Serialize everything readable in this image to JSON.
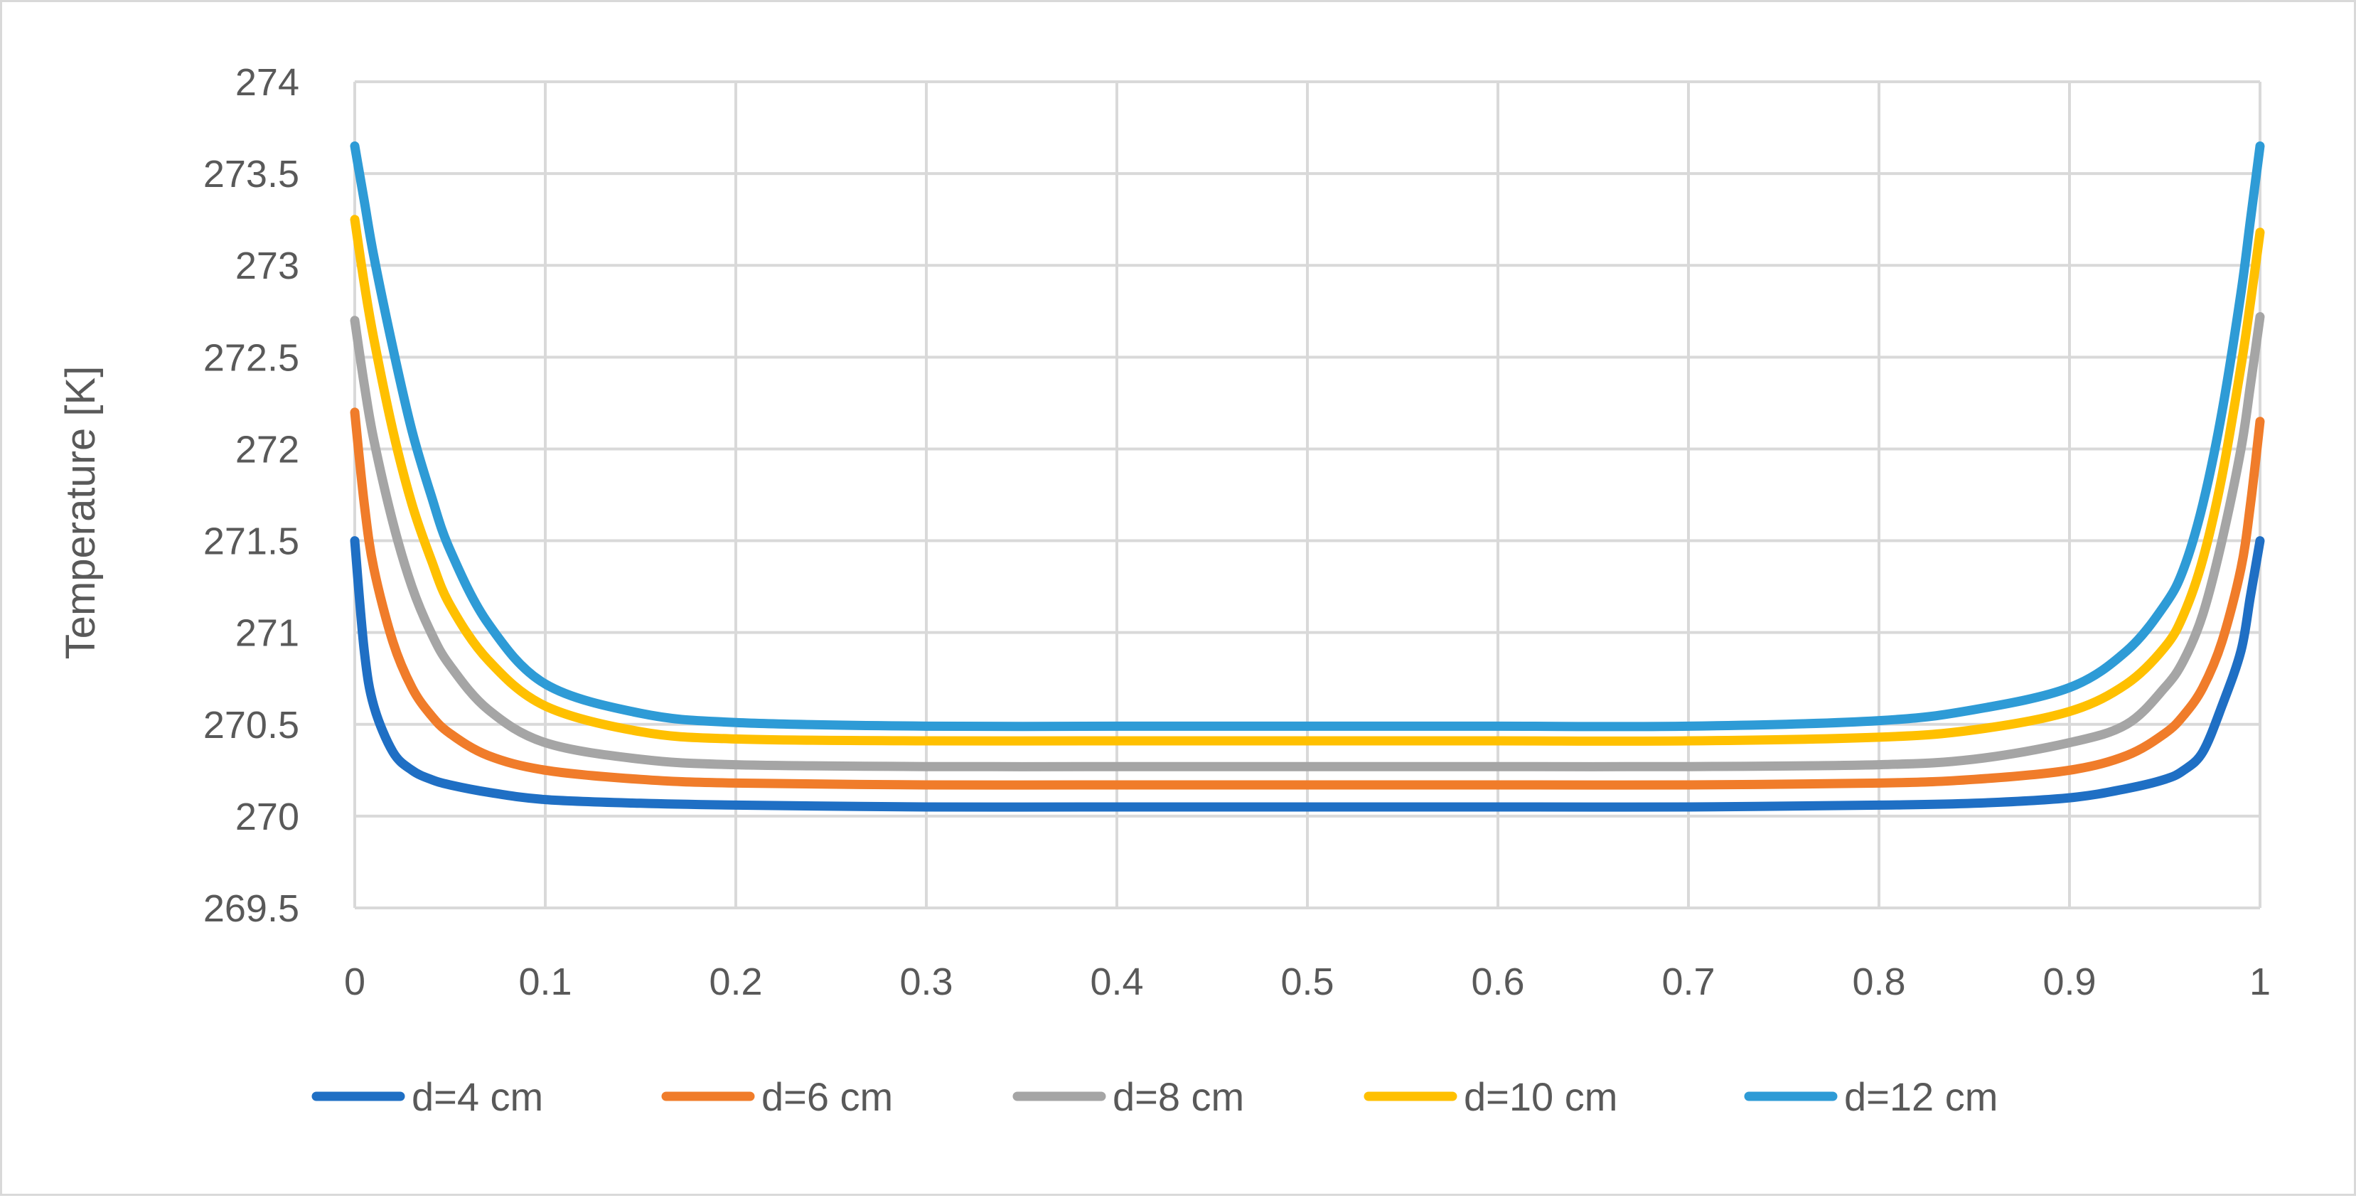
{
  "chart_data": {
    "type": "line",
    "title": "",
    "xlabel": "",
    "ylabel": "Temperature [K]",
    "xlim": [
      0,
      1
    ],
    "ylim": [
      269.5,
      274
    ],
    "x_ticks": [
      "0",
      "0.1",
      "0.2",
      "0.3",
      "0.4",
      "0.5",
      "0.6",
      "0.7",
      "0.8",
      "0.9",
      "1"
    ],
    "y_ticks": [
      "269.5",
      "270",
      "270.5",
      "271",
      "271.5",
      "272",
      "272.5",
      "273",
      "273.5",
      "274"
    ],
    "grid": true,
    "legend_position": "bottom",
    "series": [
      {
        "name": "d=4 cm",
        "color": "#1f6fc4",
        "x": [
          0,
          0.005,
          0.01,
          0.02,
          0.03,
          0.04,
          0.05,
          0.07,
          0.1,
          0.15,
          0.2,
          0.3,
          0.4,
          0.5,
          0.6,
          0.7,
          0.8,
          0.85,
          0.9,
          0.93,
          0.95,
          0.96,
          0.97,
          0.98,
          0.99,
          0.995,
          1
        ],
        "y": [
          271.5,
          270.9,
          270.6,
          270.35,
          270.25,
          270.2,
          270.17,
          270.13,
          270.09,
          270.07,
          270.06,
          270.05,
          270.05,
          270.05,
          270.05,
          270.05,
          270.06,
          270.07,
          270.1,
          270.15,
          270.2,
          270.25,
          270.35,
          270.6,
          270.9,
          271.2,
          271.5
        ]
      },
      {
        "name": "d=6 cm",
        "color": "#f07c2a",
        "x": [
          0,
          0.005,
          0.01,
          0.02,
          0.03,
          0.04,
          0.05,
          0.07,
          0.1,
          0.15,
          0.2,
          0.3,
          0.4,
          0.5,
          0.6,
          0.7,
          0.8,
          0.85,
          0.9,
          0.93,
          0.95,
          0.96,
          0.97,
          0.98,
          0.99,
          0.995,
          1
        ],
        "y": [
          272.2,
          271.7,
          271.35,
          270.95,
          270.7,
          270.55,
          270.45,
          270.33,
          270.25,
          270.2,
          270.18,
          270.17,
          270.17,
          270.17,
          270.17,
          270.17,
          270.18,
          270.2,
          270.25,
          270.33,
          270.45,
          270.55,
          270.7,
          270.95,
          271.35,
          271.7,
          272.15
        ]
      },
      {
        "name": "d=8 cm",
        "color": "#a5a5a5",
        "x": [
          0,
          0.005,
          0.01,
          0.02,
          0.03,
          0.04,
          0.05,
          0.07,
          0.1,
          0.15,
          0.2,
          0.3,
          0.4,
          0.5,
          0.6,
          0.7,
          0.8,
          0.85,
          0.9,
          0.93,
          0.95,
          0.96,
          0.97,
          0.98,
          0.99,
          0.995,
          1
        ],
        "y": [
          272.7,
          272.35,
          272.05,
          271.6,
          271.25,
          271.0,
          270.82,
          270.58,
          270.4,
          270.31,
          270.28,
          270.27,
          270.27,
          270.27,
          270.27,
          270.27,
          270.28,
          270.31,
          270.4,
          270.5,
          270.7,
          270.85,
          271.1,
          271.5,
          272.0,
          272.35,
          272.72
        ]
      },
      {
        "name": "d=10 cm",
        "color": "#ffc000",
        "x": [
          0,
          0.005,
          0.01,
          0.02,
          0.03,
          0.04,
          0.05,
          0.07,
          0.1,
          0.15,
          0.2,
          0.3,
          0.4,
          0.5,
          0.6,
          0.7,
          0.8,
          0.85,
          0.9,
          0.93,
          0.95,
          0.96,
          0.97,
          0.98,
          0.99,
          0.995,
          1
        ],
        "y": [
          273.25,
          272.9,
          272.6,
          272.1,
          271.7,
          271.4,
          271.15,
          270.85,
          270.6,
          270.46,
          270.42,
          270.41,
          270.41,
          270.41,
          270.41,
          270.41,
          270.43,
          270.47,
          270.57,
          270.72,
          270.92,
          271.1,
          271.4,
          271.85,
          272.45,
          272.8,
          273.18
        ]
      },
      {
        "name": "d=12 cm",
        "color": "#2e9bd6",
        "x": [
          0,
          0.005,
          0.01,
          0.02,
          0.03,
          0.04,
          0.05,
          0.07,
          0.1,
          0.15,
          0.2,
          0.3,
          0.4,
          0.5,
          0.6,
          0.7,
          0.8,
          0.85,
          0.9,
          0.93,
          0.95,
          0.96,
          0.97,
          0.98,
          0.99,
          0.995,
          1
        ],
        "y": [
          273.65,
          273.35,
          273.05,
          272.55,
          272.1,
          271.75,
          271.45,
          271.05,
          270.72,
          270.56,
          270.51,
          270.49,
          270.49,
          270.49,
          270.49,
          270.49,
          270.52,
          270.58,
          270.7,
          270.9,
          271.15,
          271.35,
          271.7,
          272.2,
          272.85,
          273.25,
          273.65
        ]
      }
    ]
  }
}
